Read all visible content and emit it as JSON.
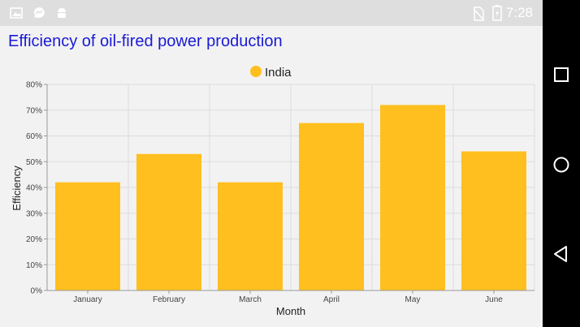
{
  "app": {
    "title": "Efficiency of oil-fired power production"
  },
  "status_bar": {
    "time": "7:28",
    "icons": [
      "image-icon",
      "messenger-icon",
      "android-icon",
      "no-sim-icon",
      "battery-charging-icon"
    ]
  },
  "nav_bar": {
    "buttons": [
      "recents-button",
      "home-button",
      "back-button"
    ]
  },
  "colors": {
    "bar": "#FFBF1E",
    "title": "#1A1AD6",
    "grid": "#DCDCDC"
  },
  "chart_data": {
    "type": "bar",
    "categories": [
      "January",
      "February",
      "March",
      "April",
      "May",
      "June"
    ],
    "series": [
      {
        "name": "India",
        "values": [
          42,
          53,
          42,
          65,
          72,
          54
        ]
      }
    ],
    "xlabel": "Month",
    "ylabel": "Efficiency",
    "ylim": [
      0,
      80
    ],
    "yticks": [
      0,
      10,
      20,
      30,
      40,
      50,
      60,
      70,
      80
    ],
    "ytick_labels": [
      "0%",
      "10%",
      "20%",
      "30%",
      "40%",
      "50%",
      "60%",
      "70%",
      "80%"
    ],
    "grid": true,
    "legend": "top-center"
  }
}
